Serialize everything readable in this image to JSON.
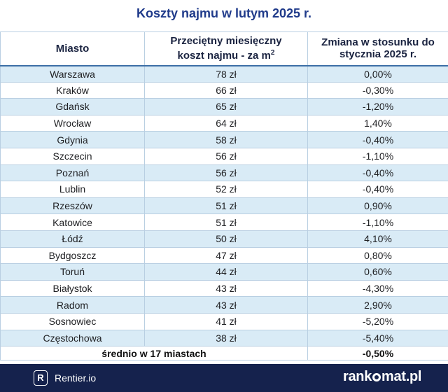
{
  "title": "Koszty najmu w lutym 2025 r.",
  "table": {
    "headers": {
      "city": "Miasto",
      "cost_line1": "Przeciętny miesięczny",
      "cost_line2": "koszt najmu - za m",
      "cost_sup": "2",
      "change_line1": "Zmiana w stosunku do",
      "change_line2": "stycznia 2025 r."
    },
    "rows": [
      {
        "city": "Warszawa",
        "cost": "78 zł",
        "change": "0,00%"
      },
      {
        "city": "Kraków",
        "cost": "66 zł",
        "change": "-0,30%"
      },
      {
        "city": "Gdańsk",
        "cost": "65 zł",
        "change": "-1,20%"
      },
      {
        "city": "Wrocław",
        "cost": "64 zł",
        "change": "1,40%"
      },
      {
        "city": "Gdynia",
        "cost": "58 zł",
        "change": "-0,40%"
      },
      {
        "city": "Szczecin",
        "cost": "56 zł",
        "change": "-1,10%"
      },
      {
        "city": "Poznań",
        "cost": "56 zł",
        "change": "-0,40%"
      },
      {
        "city": "Lublin",
        "cost": "52 zł",
        "change": "-0,40%"
      },
      {
        "city": "Rzeszów",
        "cost": "51 zł",
        "change": "0,90%"
      },
      {
        "city": "Katowice",
        "cost": "51 zł",
        "change": "-1,10%"
      },
      {
        "city": "Łódź",
        "cost": "50 zł",
        "change": "4,10%"
      },
      {
        "city": "Bydgoszcz",
        "cost": "47 zł",
        "change": "0,80%"
      },
      {
        "city": "Toruń",
        "cost": "44 zł",
        "change": "0,60%"
      },
      {
        "city": "Białystok",
        "cost": "43 zł",
        "change": "-4,30%"
      },
      {
        "city": "Radom",
        "cost": "43 zł",
        "change": "2,90%"
      },
      {
        "city": "Sosnowiec",
        "cost": "41 zł",
        "change": "-5,20%"
      },
      {
        "city": "Częstochowa",
        "cost": "38 zł",
        "change": "-5,40%"
      }
    ],
    "summary": {
      "label": "średnio w 17 miastach",
      "change": "-0,50%"
    }
  },
  "footer": {
    "rentier_logo_letter": "R",
    "rentier_label": "Rentier.io",
    "rankomat_prefix": "rank",
    "rankomat_suffix": "mat.pl",
    "background": "#15224d"
  },
  "colors": {
    "title": "#1f3a8a",
    "row_stripe": "#d9ebf6",
    "grid": "#b9cfe2"
  }
}
